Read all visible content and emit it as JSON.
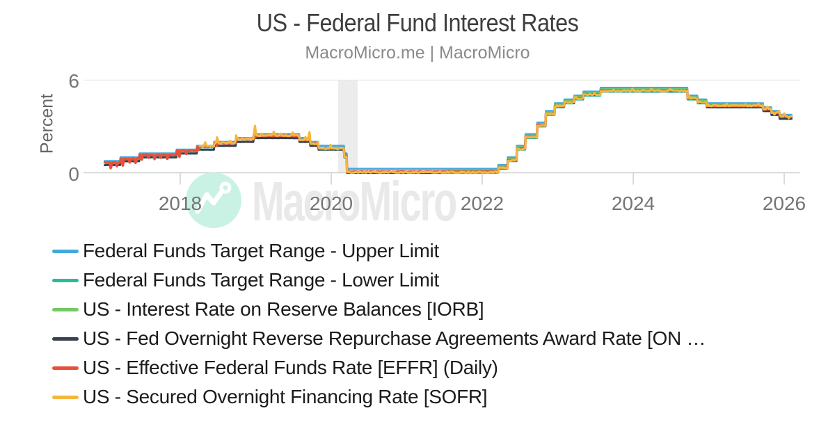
{
  "header": {
    "title": "US - Federal Fund Interest Rates",
    "subtitle": "MacroMicro.me | MacroMicro"
  },
  "watermark": {
    "text": "MacroMicro",
    "circle_color": "#c9f2e4",
    "text_color": "#e9e9e9",
    "logo_stroke_color": "#ffffff"
  },
  "y_axis": {
    "title": "Percent",
    "ticks": [
      {
        "label": "0",
        "value": 0
      },
      {
        "label": "6",
        "value": 6
      }
    ]
  },
  "x_axis": {
    "ticks": [
      {
        "label": "2018",
        "year": 2018
      },
      {
        "label": "2020",
        "year": 2020
      },
      {
        "label": "2022",
        "year": 2022
      },
      {
        "label": "2024",
        "year": 2024
      },
      {
        "label": "2026",
        "year": 2026
      }
    ]
  },
  "legend": {
    "items": [
      {
        "id": "upper",
        "label": "Federal Funds Target Range - Upper Limit",
        "color": "#41aadb"
      },
      {
        "id": "lower",
        "label": "Federal Funds Target Range - Lower Limit",
        "color": "#2fb79d"
      },
      {
        "id": "iorb",
        "label": "US - Interest Rate on Reserve Balances [IORB]",
        "color": "#76c862"
      },
      {
        "id": "onrrp",
        "label": "US - Fed Overnight Reverse Repurchase Agreements Award Rate [ON …",
        "color": "#39404f"
      },
      {
        "id": "effr",
        "label": "US - Effective Federal Funds Rate [EFFR] (Daily)",
        "color": "#e8503a"
      },
      {
        "id": "sofr",
        "label": "US - Secured Overnight Financing Rate [SOFR]",
        "color": "#f5b73e"
      }
    ]
  },
  "chart_data": {
    "type": "line",
    "title": "US - Federal Fund Interest Rates",
    "xlabel": "",
    "ylabel": "Percent",
    "ylim": [
      0,
      6
    ],
    "xlim": [
      2016.72,
      2026.3
    ],
    "x_unit": "decimal_year",
    "grid": "min-max-horizontal",
    "legend_position": "bottom-left",
    "recession_band": {
      "from": 2020.093,
      "to": 2020.35,
      "color": "#ececec"
    },
    "axis_color": "#cfcfcf",
    "grid_color": "#e8e8e8",
    "series": [
      {
        "name": "Federal Funds Target Range - Lower Limit",
        "color": "#2fb79d",
        "width": 3,
        "noise_amp": 0,
        "noise_seed": 1,
        "floor": 0,
        "end": 2026.1,
        "spikes": [],
        "steps": [
          [
            2017.0,
            0.5
          ],
          [
            2017.21,
            0.75
          ],
          [
            2017.46,
            1.0
          ],
          [
            2017.95,
            1.25
          ],
          [
            2018.22,
            1.5
          ],
          [
            2018.45,
            1.75
          ],
          [
            2018.74,
            2.0
          ],
          [
            2018.97,
            2.25
          ],
          [
            2019.58,
            2.0
          ],
          [
            2019.72,
            1.75
          ],
          [
            2019.83,
            1.5
          ],
          [
            2020.17,
            1.0
          ],
          [
            2020.21,
            0.0
          ],
          [
            2022.21,
            0.25
          ],
          [
            2022.34,
            0.75
          ],
          [
            2022.46,
            1.5
          ],
          [
            2022.57,
            2.25
          ],
          [
            2022.73,
            3.0
          ],
          [
            2022.84,
            3.75
          ],
          [
            2022.96,
            4.25
          ],
          [
            2023.09,
            4.5
          ],
          [
            2023.22,
            4.75
          ],
          [
            2023.34,
            5.0
          ],
          [
            2023.57,
            5.25
          ],
          [
            2024.72,
            4.75
          ],
          [
            2024.85,
            4.5
          ],
          [
            2024.97,
            4.25
          ],
          [
            2025.72,
            4.0
          ],
          [
            2025.83,
            3.75
          ],
          [
            2025.94,
            3.5
          ]
        ]
      },
      {
        "name": "Federal Funds Target Range - Upper Limit",
        "color": "#41aadb",
        "width": 3,
        "noise_amp": 0,
        "noise_seed": 2,
        "floor": 0,
        "end": 2026.1,
        "spikes": [],
        "steps": [
          [
            2017.0,
            0.75
          ],
          [
            2017.21,
            1.0
          ],
          [
            2017.46,
            1.25
          ],
          [
            2017.95,
            1.5
          ],
          [
            2018.22,
            1.75
          ],
          [
            2018.45,
            2.0
          ],
          [
            2018.74,
            2.25
          ],
          [
            2018.97,
            2.5
          ],
          [
            2019.58,
            2.25
          ],
          [
            2019.72,
            2.0
          ],
          [
            2019.83,
            1.75
          ],
          [
            2020.17,
            1.25
          ],
          [
            2020.21,
            0.25
          ],
          [
            2022.21,
            0.5
          ],
          [
            2022.34,
            1.0
          ],
          [
            2022.46,
            1.75
          ],
          [
            2022.57,
            2.5
          ],
          [
            2022.73,
            3.25
          ],
          [
            2022.84,
            4.0
          ],
          [
            2022.96,
            4.5
          ],
          [
            2023.09,
            4.75
          ],
          [
            2023.22,
            5.0
          ],
          [
            2023.34,
            5.25
          ],
          [
            2023.57,
            5.5
          ],
          [
            2024.72,
            5.0
          ],
          [
            2024.85,
            4.75
          ],
          [
            2024.97,
            4.5
          ],
          [
            2025.72,
            4.25
          ],
          [
            2025.83,
            4.0
          ],
          [
            2025.94,
            3.75
          ]
        ]
      },
      {
        "name": "US - Interest Rate on Reserve Balances [IORB]",
        "color": "#76c862",
        "width": 3,
        "noise_amp": 0,
        "noise_seed": 3,
        "floor": 0,
        "end": 2026.1,
        "spikes": [],
        "steps": [
          [
            2021.54,
            0.15
          ],
          [
            2022.21,
            0.4
          ],
          [
            2022.34,
            0.9
          ],
          [
            2022.46,
            1.65
          ],
          [
            2022.57,
            2.4
          ],
          [
            2022.73,
            3.15
          ],
          [
            2022.84,
            3.9
          ],
          [
            2022.96,
            4.4
          ],
          [
            2023.09,
            4.65
          ],
          [
            2023.22,
            4.9
          ],
          [
            2023.34,
            5.15
          ],
          [
            2023.57,
            5.4
          ],
          [
            2024.72,
            4.9
          ],
          [
            2024.85,
            4.65
          ],
          [
            2024.97,
            4.4
          ],
          [
            2025.72,
            4.15
          ],
          [
            2025.83,
            3.9
          ],
          [
            2025.94,
            3.65
          ]
        ]
      },
      {
        "name": "US - Fed Overnight Reverse Repurchase Agreements Award Rate [ON RRP]",
        "color": "#39404f",
        "width": 3,
        "noise_amp": 0.008,
        "noise_seed": 4,
        "floor": 0,
        "end": 2026.1,
        "spikes": [],
        "steps": [
          [
            2017.0,
            0.5
          ],
          [
            2017.21,
            0.75
          ],
          [
            2017.46,
            1.0
          ],
          [
            2017.95,
            1.25
          ],
          [
            2018.22,
            1.5
          ],
          [
            2018.45,
            1.75
          ],
          [
            2018.74,
            2.0
          ],
          [
            2018.97,
            2.25
          ],
          [
            2019.58,
            2.0
          ],
          [
            2019.72,
            1.75
          ],
          [
            2019.83,
            1.5
          ],
          [
            2020.17,
            1.0
          ],
          [
            2020.21,
            0.0
          ],
          [
            2021.46,
            0.05
          ],
          [
            2022.21,
            0.3
          ],
          [
            2022.34,
            0.8
          ],
          [
            2022.46,
            1.55
          ],
          [
            2022.57,
            2.3
          ],
          [
            2022.73,
            3.05
          ],
          [
            2022.84,
            3.8
          ],
          [
            2022.96,
            4.3
          ],
          [
            2023.09,
            4.55
          ],
          [
            2023.22,
            4.8
          ],
          [
            2023.34,
            5.05
          ],
          [
            2023.57,
            5.3
          ],
          [
            2024.72,
            4.8
          ],
          [
            2024.85,
            4.55
          ],
          [
            2024.97,
            4.25
          ],
          [
            2025.72,
            4.0
          ],
          [
            2025.83,
            3.75
          ],
          [
            2025.94,
            3.5
          ]
        ]
      },
      {
        "name": "US - Effective Federal Funds Rate [EFFR] (Daily)",
        "color": "#e8503a",
        "width": 3.5,
        "noise_amp": 0.015,
        "noise_seed": 5,
        "floor": 0.04,
        "end": 2026.1,
        "spikes": [
          [
            2017.08,
            -0.4
          ],
          [
            2017.16,
            -0.28
          ],
          [
            2017.24,
            -0.44
          ],
          [
            2017.33,
            -0.25
          ],
          [
            2017.41,
            -0.3
          ],
          [
            2017.49,
            -0.35
          ],
          [
            2017.58,
            -0.22
          ],
          [
            2017.66,
            -0.28
          ],
          [
            2017.74,
            -0.2
          ],
          [
            2017.83,
            -0.3
          ],
          [
            2017.99,
            -0.38
          ],
          [
            2018.08,
            -0.2
          ],
          [
            2018.24,
            -0.25
          ],
          [
            2018.49,
            -0.18
          ],
          [
            2018.99,
            -0.15
          ],
          [
            2020.25,
            -0.03
          ]
        ],
        "steps": [
          [
            2017.0,
            0.66
          ],
          [
            2017.21,
            0.91
          ],
          [
            2017.46,
            1.16
          ],
          [
            2017.95,
            1.42
          ],
          [
            2018.22,
            1.69
          ],
          [
            2018.45,
            1.92
          ],
          [
            2018.74,
            2.18
          ],
          [
            2018.97,
            2.4
          ],
          [
            2019.58,
            2.12
          ],
          [
            2019.72,
            1.9
          ],
          [
            2019.83,
            1.57
          ],
          [
            2020.17,
            1.1
          ],
          [
            2020.21,
            0.07
          ],
          [
            2022.21,
            0.33
          ],
          [
            2022.34,
            0.83
          ],
          [
            2022.46,
            1.58
          ],
          [
            2022.57,
            2.33
          ],
          [
            2022.73,
            3.08
          ],
          [
            2022.84,
            3.83
          ],
          [
            2022.96,
            4.33
          ],
          [
            2023.09,
            4.58
          ],
          [
            2023.22,
            4.83
          ],
          [
            2023.34,
            5.08
          ],
          [
            2023.57,
            5.33
          ],
          [
            2024.72,
            4.83
          ],
          [
            2024.85,
            4.58
          ],
          [
            2024.97,
            4.33
          ],
          [
            2025.72,
            4.11
          ],
          [
            2025.83,
            3.88
          ],
          [
            2025.94,
            3.64
          ]
        ]
      },
      {
        "name": "US - Secured Overnight Financing Rate [SOFR]",
        "color": "#f5b73e",
        "width": 3,
        "noise_amp": 0.04,
        "noise_seed": 6,
        "floor": 0.01,
        "end": 2026.1,
        "spikes": [
          [
            2018.33,
            0.25
          ],
          [
            2018.49,
            0.4
          ],
          [
            2018.66,
            0.18
          ],
          [
            2018.74,
            0.22
          ],
          [
            2018.99,
            0.72
          ],
          [
            2019.08,
            0.15
          ],
          [
            2019.24,
            0.24
          ],
          [
            2019.33,
            0.14
          ],
          [
            2019.49,
            0.2
          ],
          [
            2019.66,
            0.16
          ],
          [
            2019.71,
            0.55
          ],
          [
            2019.83,
            0.18
          ],
          [
            2019.99,
            0.28
          ],
          [
            2022.99,
            0.1
          ],
          [
            2023.24,
            0.08
          ],
          [
            2023.49,
            0.1
          ],
          [
            2023.74,
            0.09
          ],
          [
            2023.99,
            0.14
          ],
          [
            2024.24,
            0.1
          ],
          [
            2024.49,
            0.11
          ],
          [
            2024.74,
            0.12
          ],
          [
            2024.99,
            0.15
          ],
          [
            2025.24,
            0.1
          ],
          [
            2025.49,
            0.12
          ],
          [
            2025.66,
            0.14
          ],
          [
            2025.78,
            0.2
          ],
          [
            2025.87,
            -0.14
          ],
          [
            2025.94,
            0.18
          ],
          [
            2026.0,
            0.22
          ],
          [
            2026.06,
            -0.16
          ]
        ],
        "steps": [
          [
            2018.26,
            1.74
          ],
          [
            2018.45,
            1.93
          ],
          [
            2018.74,
            2.19
          ],
          [
            2018.97,
            2.42
          ],
          [
            2019.58,
            2.14
          ],
          [
            2019.72,
            1.88
          ],
          [
            2019.83,
            1.56
          ],
          [
            2020.17,
            1.05
          ],
          [
            2020.21,
            0.03
          ],
          [
            2022.21,
            0.3
          ],
          [
            2022.34,
            0.8
          ],
          [
            2022.46,
            1.54
          ],
          [
            2022.57,
            2.3
          ],
          [
            2022.73,
            3.05
          ],
          [
            2022.84,
            3.81
          ],
          [
            2022.96,
            4.31
          ],
          [
            2023.09,
            4.56
          ],
          [
            2023.22,
            4.81
          ],
          [
            2023.34,
            5.06
          ],
          [
            2023.57,
            5.31
          ],
          [
            2024.72,
            4.84
          ],
          [
            2024.85,
            4.59
          ],
          [
            2024.97,
            4.35
          ],
          [
            2025.72,
            4.12
          ],
          [
            2025.83,
            3.9
          ],
          [
            2025.94,
            3.66
          ]
        ]
      }
    ]
  }
}
